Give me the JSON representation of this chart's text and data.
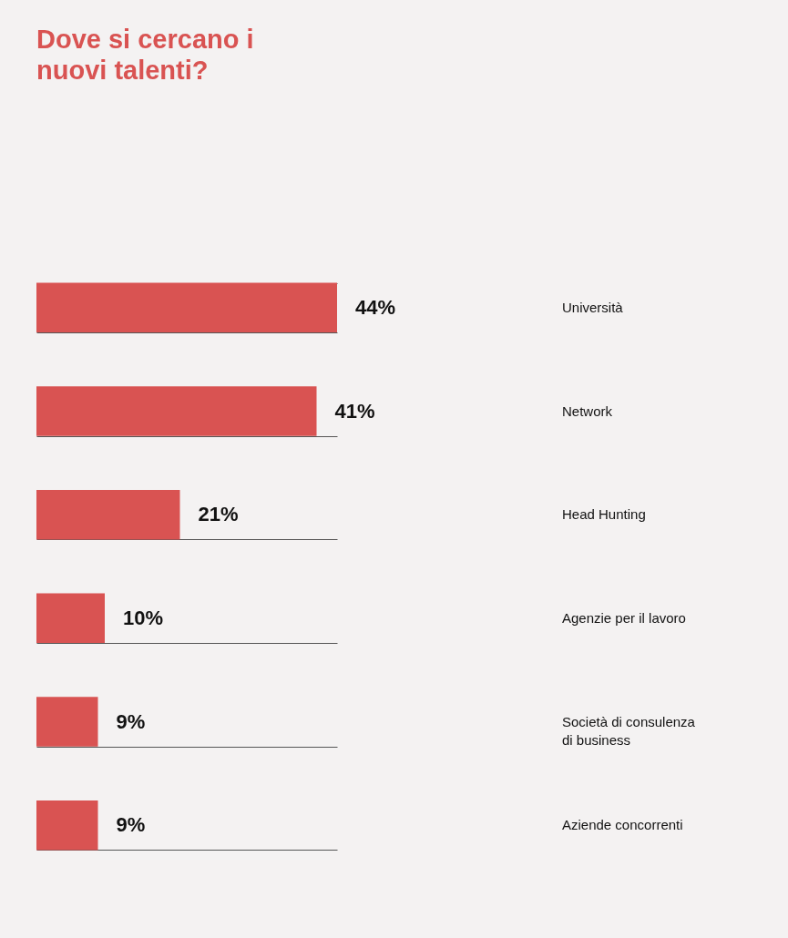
{
  "chart_data": {
    "type": "bar",
    "orientation": "horizontal",
    "title": "Dove si cercano i nuovi talenti?",
    "categories": [
      "Università",
      "Network",
      "Head Hunting",
      "Agenzie per il lavoro",
      "Società di consulenza di business",
      "Aziende concorrenti"
    ],
    "values": [
      44,
      41,
      21,
      10,
      9,
      9
    ],
    "value_labels": [
      "44%",
      "41%",
      "21%",
      "10%",
      "9%",
      "9%"
    ],
    "color": "#d95352",
    "grid": "y"
  }
}
